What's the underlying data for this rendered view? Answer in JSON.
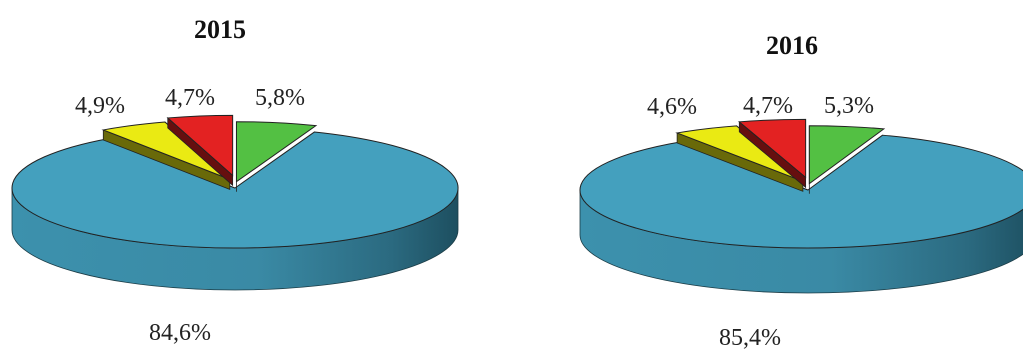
{
  "chart_data": [
    {
      "type": "pie",
      "title": "2015",
      "slices": [
        {
          "label": "84,6%",
          "value": 84.6,
          "color": "#44A0BE"
        },
        {
          "label": "4,9%",
          "value": 4.9,
          "color": "#EAEA13"
        },
        {
          "label": "4,7%",
          "value": 4.7,
          "color": "#E32222"
        },
        {
          "label": "5,8%",
          "value": 5.8,
          "color": "#53C043"
        }
      ]
    },
    {
      "type": "pie",
      "title": "2016",
      "slices": [
        {
          "label": "85,4%",
          "value": 85.4,
          "color": "#44A0BE"
        },
        {
          "label": "4,6%",
          "value": 4.6,
          "color": "#EAEA13"
        },
        {
          "label": "4,7%",
          "value": 4.7,
          "color": "#E32222"
        },
        {
          "label": "5,3%",
          "value": 5.3,
          "color": "#53C043"
        }
      ]
    }
  ]
}
